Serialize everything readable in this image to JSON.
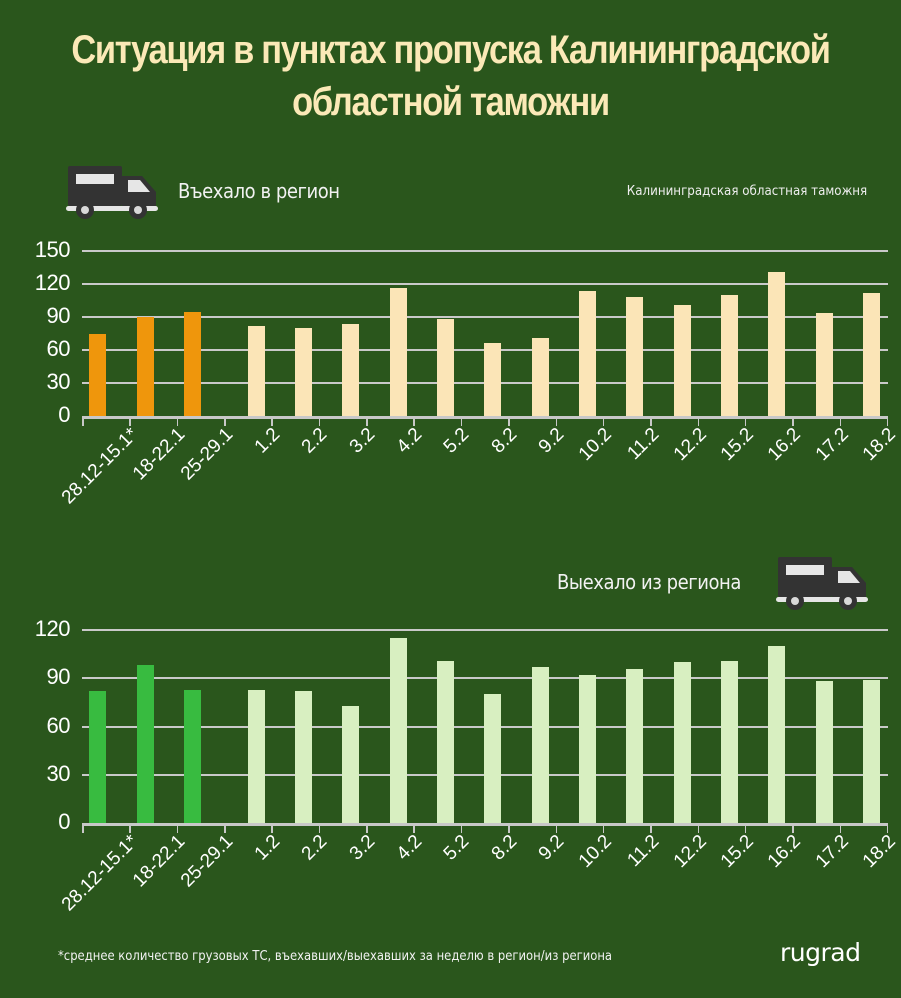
{
  "title_line1": "Ситуация в пунктах пропуска Калининградской",
  "title_line2": "областной таможни",
  "source": "Калининградская областная таможня",
  "footnote": "*среднее количество грузовых ТС, въехавших/выехавших за неделю в регион/из региона",
  "logo": "rugrad",
  "icons": {
    "truck": "truck-icon"
  },
  "colors": {
    "background": "#2a561c",
    "title": "#fbe9b7",
    "entered_highlight": "#ef960c",
    "entered_regular": "#fbe5b7",
    "exited_highlight": "#38bb40",
    "exited_regular": "#d8efc1",
    "gridline": "#c9c9c9"
  },
  "chart_data": [
    {
      "type": "bar",
      "title": "Въехало в регион",
      "xlabel": "",
      "ylabel": "",
      "ylim": [
        0,
        150
      ],
      "yticks": [
        0,
        30,
        60,
        90,
        120,
        150
      ],
      "grid": true,
      "categories": [
        "28.12-15.1*",
        "18-22.1",
        "25-29.1",
        "1.2",
        "2.2",
        "3.2",
        "4.2",
        "5.2",
        "8.2",
        "9.2",
        "10.2",
        "11.2",
        "12.2",
        "15.2",
        "16.2",
        "17.2",
        "18.2"
      ],
      "values": [
        75,
        90,
        95,
        82,
        80,
        84,
        116,
        88,
        66,
        71,
        114,
        108,
        101,
        110,
        131,
        94,
        112
      ],
      "highlighted_count": 3
    },
    {
      "type": "bar",
      "title": "Выехало из региона",
      "xlabel": "",
      "ylabel": "",
      "ylim": [
        0,
        120
      ],
      "yticks": [
        0,
        30,
        60,
        90,
        120
      ],
      "grid": true,
      "categories": [
        "28.12-15.1*",
        "18-22.1",
        "25-29.1",
        "1.2",
        "2.2",
        "3.2",
        "4.2",
        "5.2",
        "8.2",
        "9.2",
        "10.2",
        "11.2",
        "12.2",
        "15.2",
        "16.2",
        "17.2",
        "18.2"
      ],
      "values": [
        82,
        98,
        83,
        83,
        82,
        73,
        115,
        101,
        80,
        97,
        92,
        96,
        100,
        101,
        110,
        88,
        89
      ],
      "highlighted_count": 3
    }
  ]
}
